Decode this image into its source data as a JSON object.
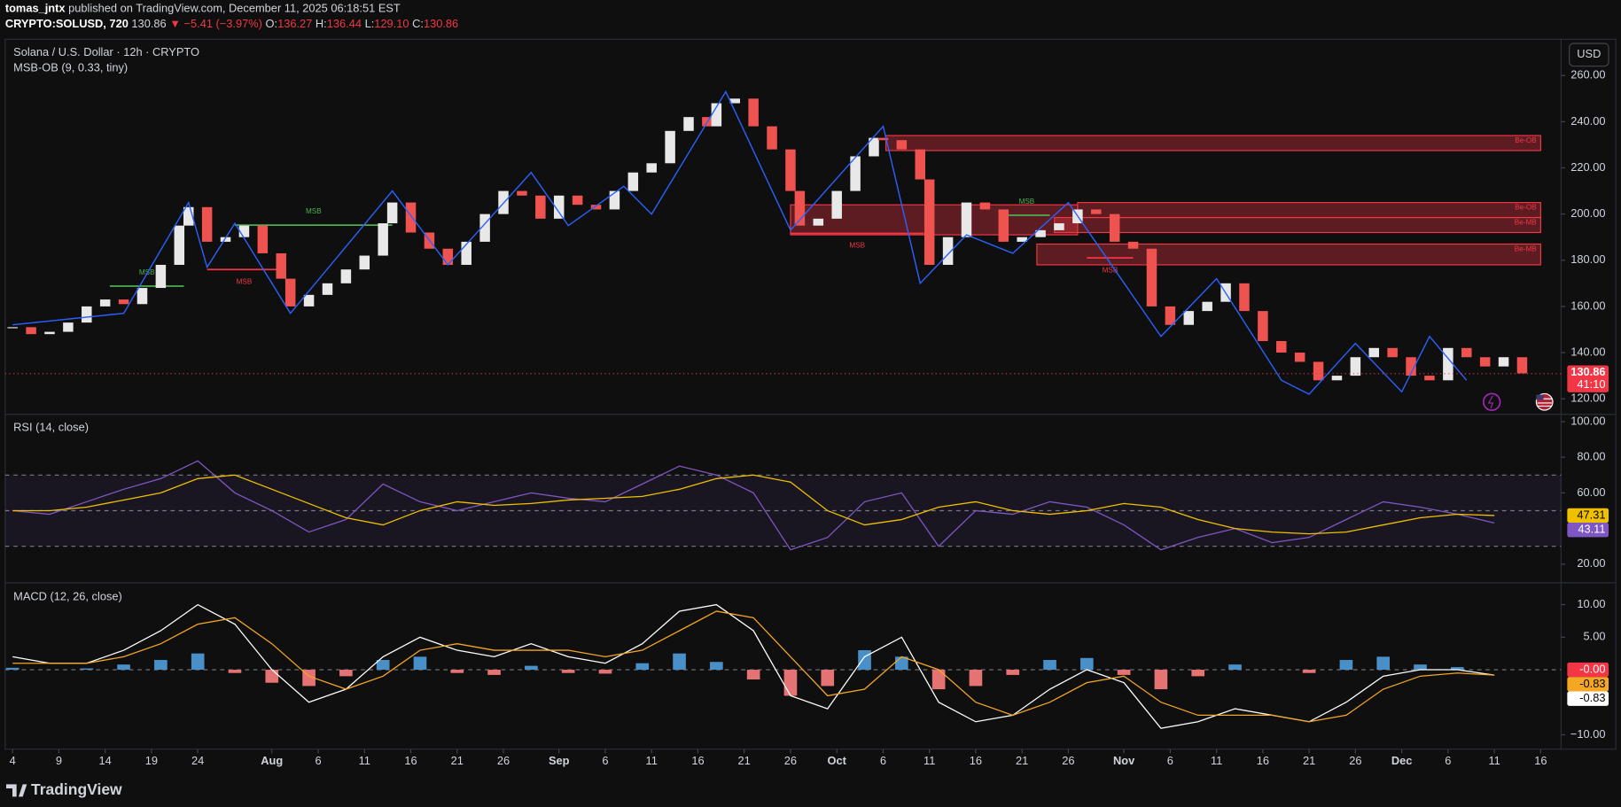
{
  "header": {
    "author": "tomas_jntx",
    "published": "published on TradingView.com, December 11, 2025 06:18:51 EST",
    "symbol": "CRYPTO:SOLUSD, 720",
    "price": "130.86",
    "change": "▼ −5.41 (−3.97%)",
    "ohlc": [
      {
        "key": "O:",
        "value": "136.27"
      },
      {
        "key": "H:",
        "value": "136.44"
      },
      {
        "key": "L:",
        "value": "129.10"
      },
      {
        "key": "C:",
        "value": "130.86"
      }
    ]
  },
  "currency_button": "USD",
  "footer": "TradingView",
  "chart_data": [
    {
      "type": "candlestick",
      "title": "Solana / U.S. Dollar · 12h · CRYPTO",
      "subtitle": "MSB-OB (9, 0.33, tiny)",
      "up_color": "#e8e8e8",
      "down_color": "#ef5350",
      "grid": false,
      "ylim": [
        113.7,
        275.7
      ],
      "yticks": [
        {
          "value": 260,
          "label": "260.00"
        },
        {
          "value": 240,
          "label": "240.00"
        },
        {
          "value": 220,
          "label": "220.00"
        },
        {
          "value": 200,
          "label": "200.00"
        },
        {
          "value": 180,
          "label": "180.00"
        },
        {
          "value": 160,
          "label": "160.00"
        },
        {
          "value": 140,
          "label": "140.00"
        },
        {
          "value": 120,
          "label": "120.00"
        }
      ],
      "x": [
        0,
        2,
        4,
        6,
        8,
        10,
        12,
        14,
        16,
        18,
        19,
        21,
        23,
        25,
        27,
        29,
        30,
        32,
        34,
        36,
        38,
        40,
        41,
        43,
        45,
        47,
        49,
        51,
        53,
        55,
        57,
        59,
        61,
        63,
        65,
        67,
        69,
        71,
        73,
        75,
        76,
        78,
        80,
        82,
        84,
        85,
        87,
        89,
        91,
        93,
        94,
        96,
        98,
        99,
        101,
        103,
        105,
        107,
        109,
        111,
        113,
        115,
        117,
        119,
        121,
        123,
        125,
        127,
        129,
        131,
        133,
        135,
        137,
        139,
        141,
        143,
        145,
        147,
        149,
        151,
        153,
        155,
        157,
        159,
        161,
        163
      ],
      "values": [
        151,
        148,
        149,
        153,
        160,
        163,
        161,
        168,
        178,
        195,
        203,
        188,
        190,
        195,
        183,
        172,
        160,
        165,
        170,
        176,
        182,
        196,
        205,
        192,
        185,
        178,
        188,
        200,
        210,
        208,
        198,
        208,
        204,
        202,
        210,
        218,
        222,
        236,
        242,
        238,
        248,
        250,
        238,
        228,
        210,
        195,
        198,
        210,
        225,
        233,
        232,
        228,
        215,
        178,
        190,
        205,
        202,
        188,
        190,
        193,
        196,
        202,
        200,
        188,
        185,
        160,
        152,
        158,
        162,
        170,
        158,
        145,
        140,
        136,
        128,
        130,
        138,
        142,
        138,
        130,
        128,
        142,
        138,
        134,
        138,
        131
      ],
      "zigzag": {
        "color": "#2962ff",
        "x": [
          0,
          12,
          19,
          21,
          24,
          30,
          41,
          47,
          56,
          60,
          66,
          69,
          77,
          84,
          94,
          98,
          103,
          108,
          114,
          124,
          130,
          137,
          140,
          145,
          150,
          153,
          157
        ],
        "values": [
          152,
          157,
          205,
          177,
          196,
          157,
          210,
          178,
          218,
          195,
          212,
          200,
          253,
          193,
          238,
          170,
          191,
          183,
          205,
          147,
          172,
          128,
          122,
          144,
          123,
          147,
          128
        ]
      },
      "zones": [
        {
          "x": [
            94.3,
            165
          ],
          "low": 227.5,
          "high": 234,
          "label": "Be-OB",
          "color": "#f23645"
        },
        {
          "x": [
            115,
            165
          ],
          "low": 198.5,
          "high": 205,
          "label": "Be-OB",
          "color": "#f23645"
        },
        {
          "x": [
            112.5,
            165
          ],
          "low": 192,
          "high": 198.5,
          "label": "Be-MB",
          "color": "#f23645"
        },
        {
          "x": [
            110.6,
            165
          ],
          "low": 178,
          "high": 187,
          "label": "Be-MB",
          "color": "#f23645"
        },
        {
          "x": [
            84,
            115
          ],
          "low": 191,
          "high": 204,
          "color": "#f23645"
        }
      ],
      "msb": [
        {
          "label": "MSB",
          "x": [
            10.5,
            18.5
          ],
          "y": 168.8,
          "color": "#4caf50"
        },
        {
          "label": "MSB",
          "x": [
            21,
            29
          ],
          "y": 176,
          "color": "#f23645"
        },
        {
          "label": "MSB",
          "x": [
            24,
            41
          ],
          "y": 195.2,
          "color": "#4caf50"
        },
        {
          "label": "MSB",
          "x": [
            84,
            98.4
          ],
          "y": 191.6,
          "color": "#f23645"
        },
        {
          "label": "MSB",
          "x": [
            107,
            112
          ],
          "y": 199.5,
          "color": "#4caf50"
        },
        {
          "label": "MSB",
          "x": [
            116,
            121
          ],
          "y": 181,
          "color": "#f23645"
        }
      ],
      "last_price": 130.86,
      "countdown": "41:10",
      "last_price_color": "#f23645"
    },
    {
      "type": "line",
      "title": "RSI (14, close)",
      "grid": false,
      "ylim": [
        10.1,
        103.5
      ],
      "yticks": [
        {
          "value": 100,
          "label": "100.00"
        },
        {
          "value": 80,
          "label": "80.00"
        },
        {
          "value": 60,
          "label": "60.00"
        },
        {
          "value": 20,
          "label": "20.00"
        }
      ],
      "bands": [
        70,
        50,
        30
      ],
      "band_color": "#7e57c2",
      "x": [
        0,
        4,
        8,
        12,
        16,
        20,
        24,
        28,
        32,
        36,
        40,
        44,
        48,
        52,
        56,
        60,
        64,
        68,
        72,
        76,
        80,
        84,
        88,
        92,
        96,
        100,
        104,
        108,
        112,
        116,
        120,
        124,
        128,
        132,
        136,
        140,
        144,
        148,
        152,
        156,
        160
      ],
      "series": [
        {
          "color": "#7e57c2",
          "values": [
            50,
            48,
            55,
            62,
            68,
            78,
            60,
            50,
            38,
            45,
            65,
            55,
            50,
            55,
            60,
            57,
            55,
            65,
            75,
            70,
            60,
            28,
            35,
            55,
            60,
            30,
            50,
            48,
            55,
            52,
            42,
            28,
            35,
            40,
            32,
            35,
            45,
            55,
            52,
            48,
            43.11
          ]
        },
        {
          "color": "#f0c000",
          "values": [
            50,
            50,
            52,
            56,
            60,
            68,
            70,
            62,
            54,
            46,
            42,
            50,
            55,
            53,
            54,
            56,
            57,
            58,
            62,
            68,
            70,
            66,
            50,
            42,
            45,
            52,
            55,
            50,
            48,
            50,
            54,
            52,
            45,
            40,
            38,
            37,
            38,
            42,
            46,
            48,
            47.31
          ]
        }
      ]
    },
    {
      "type": "line",
      "title": "MACD (12, 26, close)",
      "grid": false,
      "ylim": [
        -12.2,
        13.2
      ],
      "yticks": [
        {
          "value": 10,
          "label": "10.00"
        },
        {
          "value": 5,
          "label": "5.00"
        },
        {
          "value": -10,
          "label": "−10.00"
        }
      ],
      "hline": 0,
      "xlim": [
        -0.8,
        167.2
      ],
      "xticks": [
        {
          "value": 0,
          "label": "4"
        },
        {
          "value": 5,
          "label": "9"
        },
        {
          "value": 10,
          "label": "14"
        },
        {
          "value": 15,
          "label": "19"
        },
        {
          "value": 20,
          "label": "24"
        },
        {
          "value": 28,
          "label": "Aug"
        },
        {
          "value": 33,
          "label": "6"
        },
        {
          "value": 38,
          "label": "11"
        },
        {
          "value": 43,
          "label": "16"
        },
        {
          "value": 48,
          "label": "21"
        },
        {
          "value": 53,
          "label": "26"
        },
        {
          "value": 59,
          "label": "Sep"
        },
        {
          "value": 64,
          "label": "6"
        },
        {
          "value": 69,
          "label": "11"
        },
        {
          "value": 74,
          "label": "16"
        },
        {
          "value": 79,
          "label": "21"
        },
        {
          "value": 84,
          "label": "26"
        },
        {
          "value": 89,
          "label": "Oct"
        },
        {
          "value": 94,
          "label": "6"
        },
        {
          "value": 99,
          "label": "11"
        },
        {
          "value": 104,
          "label": "16"
        },
        {
          "value": 109,
          "label": "21"
        },
        {
          "value": 114,
          "label": "26"
        },
        {
          "value": 120,
          "label": "Nov"
        },
        {
          "value": 125,
          "label": "6"
        },
        {
          "value": 130,
          "label": "11"
        },
        {
          "value": 135,
          "label": "16"
        },
        {
          "value": 140,
          "label": "21"
        },
        {
          "value": 145,
          "label": "26"
        },
        {
          "value": 150,
          "label": "Dec"
        },
        {
          "value": 155,
          "label": "6"
        },
        {
          "value": 160,
          "label": "11"
        },
        {
          "value": 165,
          "label": "16"
        }
      ],
      "x": [
        0,
        4,
        8,
        12,
        16,
        20,
        24,
        28,
        32,
        36,
        40,
        44,
        48,
        52,
        56,
        60,
        64,
        68,
        72,
        76,
        80,
        84,
        88,
        92,
        96,
        100,
        104,
        108,
        112,
        116,
        120,
        124,
        128,
        132,
        136,
        140,
        144,
        148,
        152,
        156,
        160
      ],
      "histogram": {
        "up_color": "#4a90c8",
        "down_color": "#e57373",
        "last_value_label": "-0.00",
        "values": [
          0.3,
          0,
          0.2,
          0.8,
          1.5,
          2.5,
          -0.5,
          -2,
          -2.5,
          -1,
          1.5,
          2,
          -0.5,
          -0.8,
          0.6,
          -0.5,
          -0.6,
          1,
          2.5,
          1.2,
          -1.5,
          -4,
          -2.5,
          3,
          2,
          -3,
          -2.5,
          -0.8,
          1.5,
          1.8,
          -0.8,
          -3,
          -1,
          0.8,
          0,
          -0.5,
          1.5,
          2,
          0.8,
          0.4,
          0
        ]
      },
      "series": [
        {
          "color": "#ffffff",
          "values": [
            2,
            1,
            1,
            3,
            6,
            10,
            7,
            0,
            -5,
            -3,
            2,
            5,
            3,
            2,
            4,
            2,
            1,
            4,
            9,
            10,
            6,
            -4,
            -6,
            2,
            5,
            -5,
            -8,
            -7,
            -3,
            0,
            -2,
            -9,
            -8,
            -6,
            -7,
            -8,
            -5,
            -1,
            0,
            0,
            -0.83
          ]
        },
        {
          "color": "#f5a623",
          "values": [
            1,
            1,
            1,
            2,
            4,
            7,
            8,
            4,
            -1,
            -3,
            -1,
            3,
            4,
            3,
            3,
            3,
            2,
            3,
            6,
            9,
            8,
            2,
            -4,
            -3,
            2,
            0,
            -5,
            -7,
            -5,
            -2,
            -1,
            -5,
            -7,
            -7,
            -7,
            -8,
            -7,
            -3,
            -1,
            -0.5,
            -0.83
          ]
        }
      ]
    }
  ]
}
